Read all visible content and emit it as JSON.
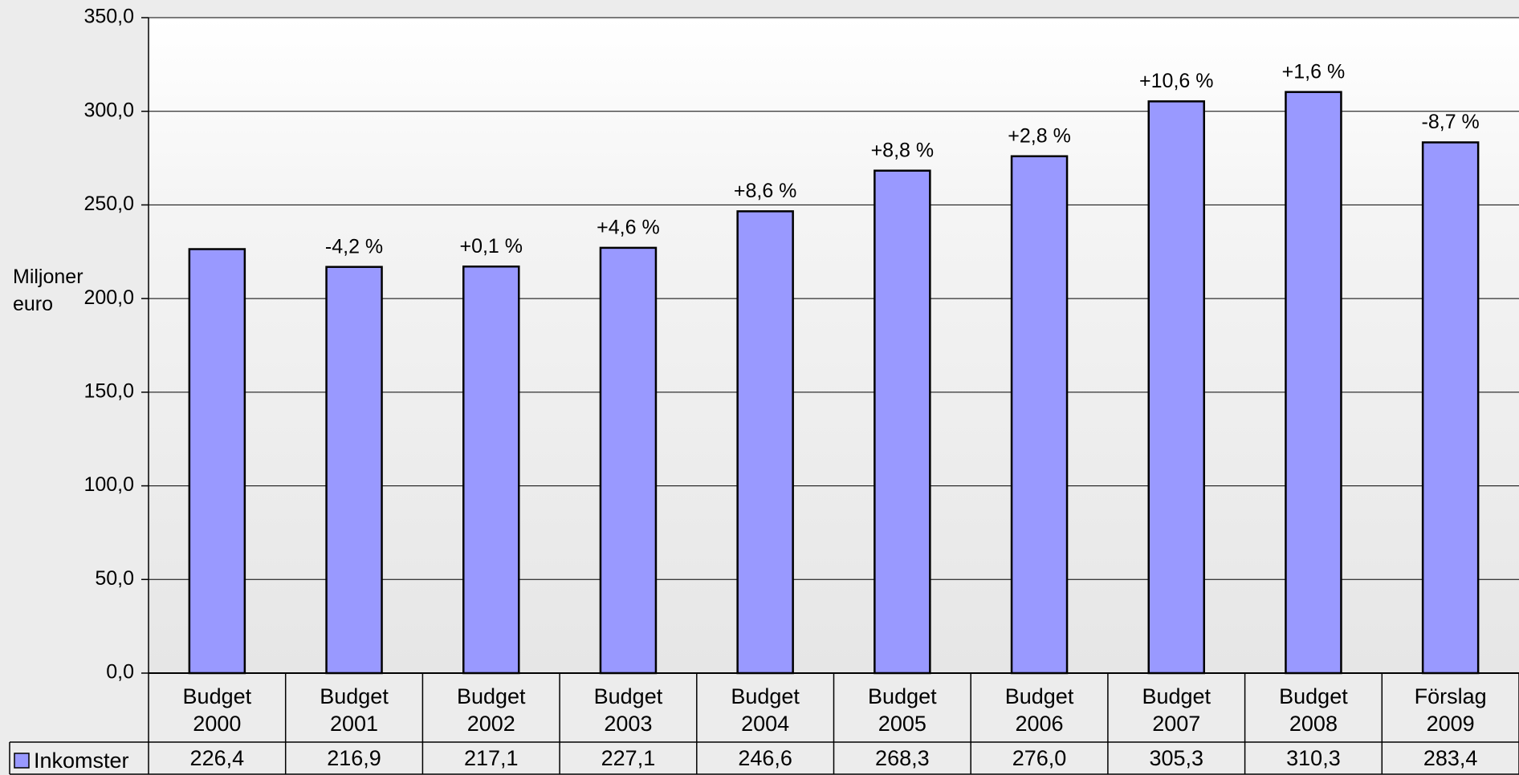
{
  "chart_data": {
    "type": "bar",
    "y_label": "Miljoner euro",
    "categories": [
      "Budget 2000",
      "Budget 2001",
      "Budget 2002",
      "Budget 2003",
      "Budget 2004",
      "Budget 2005",
      "Budget 2006",
      "Budget 2007",
      "Budget 2008",
      "Förslag 2009"
    ],
    "series": [
      {
        "name": "Inkomster",
        "color": "#9999ff",
        "values": [
          226.4,
          216.9,
          217.1,
          227.1,
          246.6,
          268.3,
          276.0,
          305.3,
          310.3,
          283.4
        ],
        "value_labels": [
          "226,4",
          "216,9",
          "217,1",
          "227,1",
          "246,6",
          "268,3",
          "276,0",
          "305,3",
          "310,3",
          "283,4"
        ]
      }
    ],
    "change_labels": [
      null,
      "-4,2 %",
      "+0,1 %",
      "+4,6 %",
      "+8,6 %",
      "+8,8 %",
      "+2,8 %",
      "+10,6 %",
      "+1,6 %",
      "-8,7 %"
    ],
    "ylim": [
      0,
      350
    ],
    "yticks": [
      {
        "value": 0,
        "label": "0,0"
      },
      {
        "value": 50,
        "label": "50,0"
      },
      {
        "value": 100,
        "label": "100,0"
      },
      {
        "value": 150,
        "label": "150,0"
      },
      {
        "value": 200,
        "label": "200,0"
      },
      {
        "value": 250,
        "label": "250,0"
      },
      {
        "value": 300,
        "label": "300,0"
      },
      {
        "value": 350,
        "label": "350,0"
      }
    ],
    "grid": true
  }
}
